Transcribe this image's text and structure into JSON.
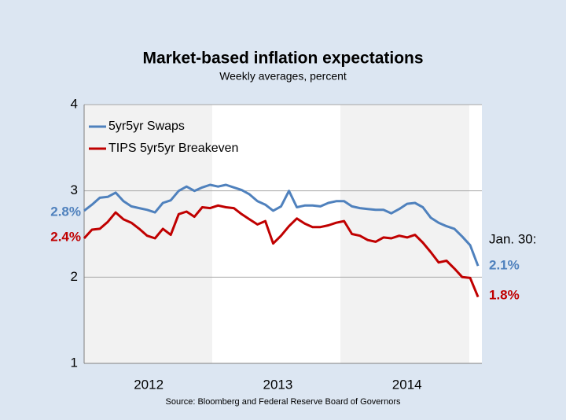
{
  "chart_data": {
    "type": "line",
    "title": "Market-based inflation expectations",
    "subtitle": "Weekly averages, percent",
    "source": "Source: Bloomberg and Federal Reserve Board of Governors",
    "x": [
      2012.0,
      2012.061,
      2012.122,
      2012.183,
      2012.244,
      2012.305,
      2012.366,
      2012.427,
      2012.488,
      2012.549,
      2012.61,
      2012.671,
      2012.732,
      2012.793,
      2012.854,
      2012.915,
      2012.976,
      2013.037,
      2013.098,
      2013.159,
      2013.22,
      2013.281,
      2013.342,
      2013.403,
      2013.464,
      2013.525,
      2013.586,
      2013.647,
      2013.708,
      2013.769,
      2013.83,
      2013.891,
      2013.952,
      2014.013,
      2014.074,
      2014.135,
      2014.196,
      2014.257,
      2014.318,
      2014.379,
      2014.44,
      2014.501,
      2014.562,
      2014.623,
      2014.684,
      2014.745,
      2014.806,
      2014.867,
      2014.928,
      2014.989,
      2015.05
    ],
    "series": [
      {
        "name": "5yr5yr Swaps",
        "color": "#4f81bd",
        "values": [
          2.77,
          2.84,
          2.92,
          2.93,
          2.98,
          2.88,
          2.82,
          2.8,
          2.78,
          2.75,
          2.86,
          2.89,
          3.0,
          3.05,
          3.0,
          3.04,
          3.07,
          3.05,
          3.07,
          3.04,
          3.01,
          2.96,
          2.88,
          2.84,
          2.77,
          2.82,
          3.0,
          2.81,
          2.83,
          2.83,
          2.82,
          2.86,
          2.88,
          2.88,
          2.82,
          2.8,
          2.79,
          2.78,
          2.78,
          2.74,
          2.79,
          2.85,
          2.86,
          2.81,
          2.69,
          2.63,
          2.59,
          2.56,
          2.47,
          2.37,
          2.13
        ]
      },
      {
        "name": "TIPS 5yr5yr Breakeven",
        "color": "#c00000",
        "values": [
          2.45,
          2.55,
          2.56,
          2.64,
          2.75,
          2.67,
          2.63,
          2.56,
          2.48,
          2.45,
          2.56,
          2.49,
          2.73,
          2.76,
          2.7,
          2.81,
          2.8,
          2.83,
          2.81,
          2.8,
          2.73,
          2.67,
          2.61,
          2.65,
          2.39,
          2.48,
          2.59,
          2.68,
          2.62,
          2.58,
          2.58,
          2.6,
          2.63,
          2.65,
          2.5,
          2.48,
          2.43,
          2.41,
          2.46,
          2.45,
          2.48,
          2.46,
          2.49,
          2.4,
          2.29,
          2.17,
          2.19,
          2.1,
          2.0,
          1.99,
          1.77
        ]
      }
    ],
    "xlim": [
      2012,
      2015.08
    ],
    "xticks": [
      {
        "value": 2012.5,
        "label": "2012"
      },
      {
        "value": 2013.5,
        "label": "2013"
      },
      {
        "value": 2014.5,
        "label": "2014"
      }
    ],
    "ylim": [
      1,
      4
    ],
    "yticks": [
      1,
      2,
      3,
      4
    ],
    "grid": true,
    "legend": "upper-left",
    "annotations": [
      {
        "text": "2.8%",
        "color": "#4f81bd"
      },
      {
        "text": "2.4%",
        "color": "#c00000"
      },
      {
        "text": "Jan. 30:",
        "color": "#000000"
      },
      {
        "text": "2.1%",
        "color": "#4f81bd"
      },
      {
        "text": "1.8%",
        "color": "#c00000"
      }
    ]
  }
}
